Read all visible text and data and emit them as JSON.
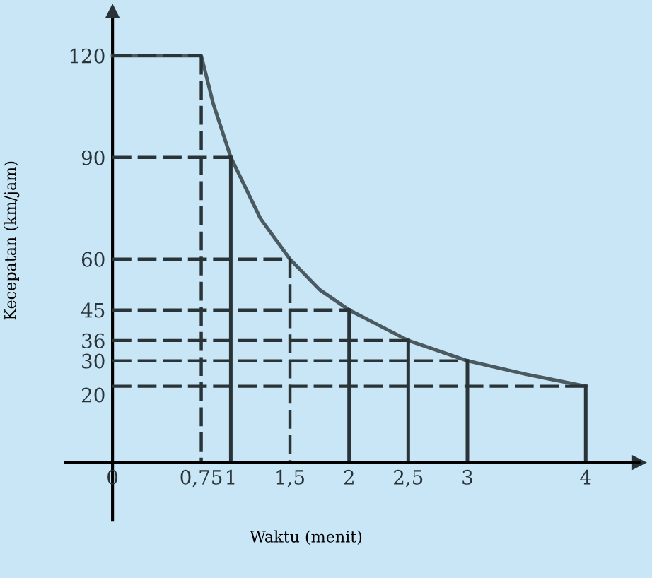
{
  "chart_data": {
    "type": "line",
    "xlabel": "Waktu (menit)",
    "ylabel": "Kecepatan (km/jam)",
    "xlim": [
      -0.4,
      4.45
    ],
    "ylim": [
      -17,
      133
    ],
    "xticks": [
      0,
      {
        "value": 0.75,
        "label": "0,75"
      },
      1,
      {
        "value": 1.5,
        "label": "1,5"
      },
      2,
      {
        "value": 2.5,
        "label": "2,5"
      },
      3,
      4
    ],
    "yticks": [
      20,
      30,
      36,
      45,
      60,
      90,
      120
    ],
    "grid": false,
    "legend": false,
    "marker": "none",
    "series": [
      {
        "color": "#4a5a60",
        "line_style": "solid",
        "x": [
          0,
          0.75,
          0.85,
          1,
          1.25,
          1.5,
          1.75,
          2,
          2.5,
          3,
          3.5,
          4
        ],
        "values": [
          120,
          120,
          106,
          90,
          72,
          60,
          51,
          45,
          36,
          30,
          26,
          22.5
        ]
      },
      {
        "color": "#2a3438",
        "line_style": "solid",
        "x": [
          4,
          4
        ],
        "values": [
          22.5,
          0
        ]
      },
      {
        "color": "#2a3438",
        "line_style": "dashed",
        "x": [
          0,
          0.75
        ],
        "values": [
          120,
          120
        ]
      },
      {
        "color": "#2a3438",
        "line_style": "dashed",
        "x": [
          0.75,
          0.75
        ],
        "values": [
          120,
          0
        ]
      },
      {
        "color": "#2a3438",
        "line_style": "dashed",
        "x": [
          0,
          1
        ],
        "values": [
          90,
          90
        ]
      },
      {
        "color": "#2a3438",
        "line_style": "solid",
        "x": [
          1,
          1
        ],
        "values": [
          90,
          0
        ]
      },
      {
        "color": "#2a3438",
        "line_style": "dashed",
        "x": [
          0,
          1.5
        ],
        "values": [
          60,
          60
        ]
      },
      {
        "color": "#2a3438",
        "line_style": "dashed",
        "x": [
          1.5,
          1.5
        ],
        "values": [
          60,
          0
        ]
      },
      {
        "color": "#2a3438",
        "line_style": "dashed",
        "x": [
          0,
          2
        ],
        "values": [
          45,
          45
        ]
      },
      {
        "color": "#2a3438",
        "line_style": "solid",
        "x": [
          2,
          2
        ],
        "values": [
          45,
          0
        ]
      },
      {
        "color": "#2a3438",
        "line_style": "dashed",
        "x": [
          0,
          2.5
        ],
        "values": [
          36,
          36
        ]
      },
      {
        "color": "#2a3438",
        "line_style": "solid",
        "x": [
          2.5,
          2.5
        ],
        "values": [
          36,
          0
        ]
      },
      {
        "color": "#2a3438",
        "line_style": "dashed",
        "x": [
          0,
          3
        ],
        "values": [
          30,
          30
        ]
      },
      {
        "color": "#2a3438",
        "line_style": "solid",
        "x": [
          3,
          3
        ],
        "values": [
          30,
          0
        ]
      },
      {
        "color": "#2a3438",
        "line_style": "dashed",
        "x": [
          0,
          4
        ],
        "values": [
          22.5,
          22.5
        ]
      }
    ]
  }
}
